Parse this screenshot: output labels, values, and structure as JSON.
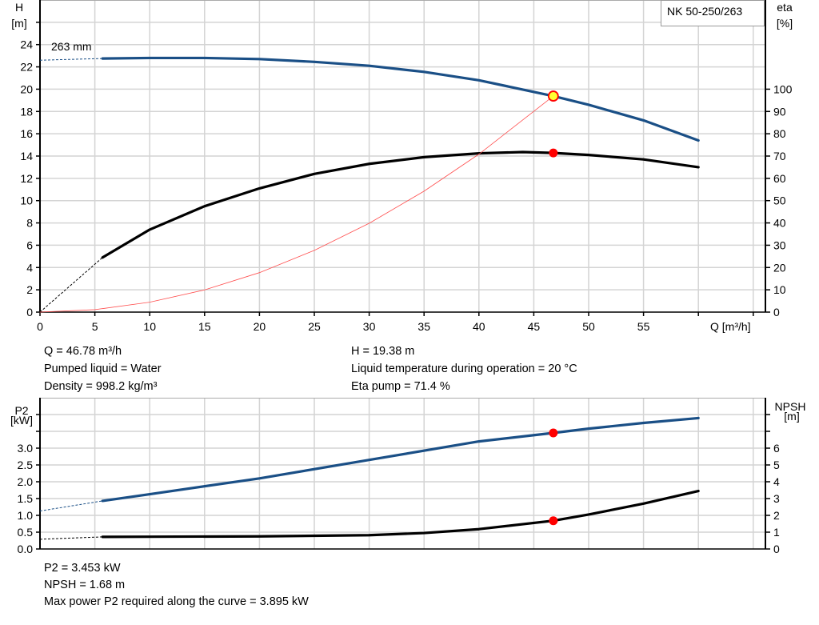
{
  "legend_label": "NK 50-250/263",
  "chart_data": [
    {
      "type": "line",
      "id": "head-eta",
      "xlabel": "Q [m³/h]",
      "ylabel": [
        "H",
        "[m]"
      ],
      "y2label": [
        "eta",
        "[%]"
      ],
      "xlim": [
        0,
        66
      ],
      "ylim": [
        0,
        28
      ],
      "y2lim": [
        0,
        140
      ],
      "xticks": [
        0,
        5,
        10,
        15,
        20,
        25,
        30,
        35,
        40,
        45,
        50,
        55
      ],
      "yticks": [
        0,
        2,
        4,
        6,
        8,
        10,
        12,
        14,
        16,
        18,
        20,
        22,
        24
      ],
      "y2ticks": [
        0,
        10,
        20,
        30,
        40,
        50,
        60,
        70,
        80,
        90,
        100
      ],
      "grid": true,
      "annotation": "263 mm",
      "series": [
        {
          "name": "H",
          "axis": "left",
          "color": "#1a4f86",
          "dashed_extension": [
            [
              0,
              22.6
            ],
            [
              5.7,
              22.75
            ]
          ],
          "points": [
            [
              5.7,
              22.75
            ],
            [
              10,
              22.8
            ],
            [
              15,
              22.8
            ],
            [
              20,
              22.7
            ],
            [
              25,
              22.45
            ],
            [
              30,
              22.1
            ],
            [
              35,
              21.55
            ],
            [
              40,
              20.8
            ],
            [
              46.78,
              19.38
            ],
            [
              50,
              18.6
            ],
            [
              55,
              17.2
            ],
            [
              60,
              15.4
            ]
          ]
        },
        {
          "name": "eta",
          "axis": "right",
          "color": "#000000",
          "dashed_extension": [
            [
              0,
              0
            ],
            [
              5.7,
              24.5
            ]
          ],
          "points": [
            [
              5.7,
              24.5
            ],
            [
              10,
              37
            ],
            [
              15,
              47.5
            ],
            [
              20,
              55.5
            ],
            [
              25,
              62
            ],
            [
              30,
              66.5
            ],
            [
              35,
              69.5
            ],
            [
              40,
              71.2
            ],
            [
              44,
              71.8
            ],
            [
              46.78,
              71.4
            ],
            [
              50,
              70.5
            ],
            [
              55,
              68.5
            ],
            [
              60,
              65
            ]
          ]
        },
        {
          "name": "system curve",
          "axis": "left",
          "color": "#ff5050",
          "points": [
            [
              0,
              0
            ],
            [
              5,
              0.22
            ],
            [
              10,
              0.89
            ],
            [
              15,
              1.99
            ],
            [
              20,
              3.54
            ],
            [
              25,
              5.54
            ],
            [
              30,
              7.97
            ],
            [
              35,
              10.85
            ],
            [
              40,
              14.17
            ],
            [
              46.78,
              19.38
            ]
          ]
        }
      ],
      "duty_point": {
        "Q": 46.78,
        "H": 19.38,
        "eta": 71.4
      }
    },
    {
      "type": "line",
      "id": "power-npsh",
      "ylabel": [
        "P2",
        "[kW]"
      ],
      "y2label": [
        "NPSH",
        "[m]"
      ],
      "xlim": [
        0,
        66
      ],
      "ylim": [
        0,
        4.5
      ],
      "y2lim": [
        0,
        9
      ],
      "yticks": [
        0.0,
        0.5,
        1.0,
        1.5,
        2.0,
        2.5,
        3.0
      ],
      "y2ticks": [
        0,
        1,
        2,
        3,
        4,
        5,
        6
      ],
      "grid": true,
      "series": [
        {
          "name": "P2",
          "axis": "left",
          "color": "#1a4f86",
          "dashed_extension": [
            [
              0,
              1.13
            ],
            [
              5.7,
              1.43
            ]
          ],
          "points": [
            [
              5.7,
              1.43
            ],
            [
              10,
              1.63
            ],
            [
              20,
              2.1
            ],
            [
              30,
              2.65
            ],
            [
              40,
              3.2
            ],
            [
              46.78,
              3.453
            ],
            [
              50,
              3.58
            ],
            [
              55,
              3.75
            ],
            [
              60,
              3.895
            ]
          ]
        },
        {
          "name": "NPSH",
          "axis": "right",
          "color": "#000000",
          "dashed_extension": [
            [
              0,
              0.58
            ],
            [
              5.7,
              0.72
            ]
          ],
          "points": [
            [
              5.7,
              0.72
            ],
            [
              10,
              0.73
            ],
            [
              20,
              0.75
            ],
            [
              30,
              0.82
            ],
            [
              35,
              0.95
            ],
            [
              40,
              1.18
            ],
            [
              46.78,
              1.68
            ],
            [
              50,
              2.05
            ],
            [
              55,
              2.7
            ],
            [
              60,
              3.45
            ]
          ]
        }
      ],
      "duty_point": {
        "Q": 46.78,
        "P2": 3.453,
        "NPSH": 1.68
      }
    }
  ],
  "info_top": {
    "left": [
      "Q = 46.78 m³/h",
      "Pumped liquid = Water",
      "Density = 998.2 kg/m³"
    ],
    "right": [
      "H = 19.38 m",
      "Liquid temperature during operation = 20 °C",
      "Eta pump = 71.4 %"
    ]
  },
  "info_bottom": [
    "P2 = 3.453 kW",
    "NPSH = 1.68 m",
    "Max power P2 required along the curve = 3.895 kW"
  ]
}
